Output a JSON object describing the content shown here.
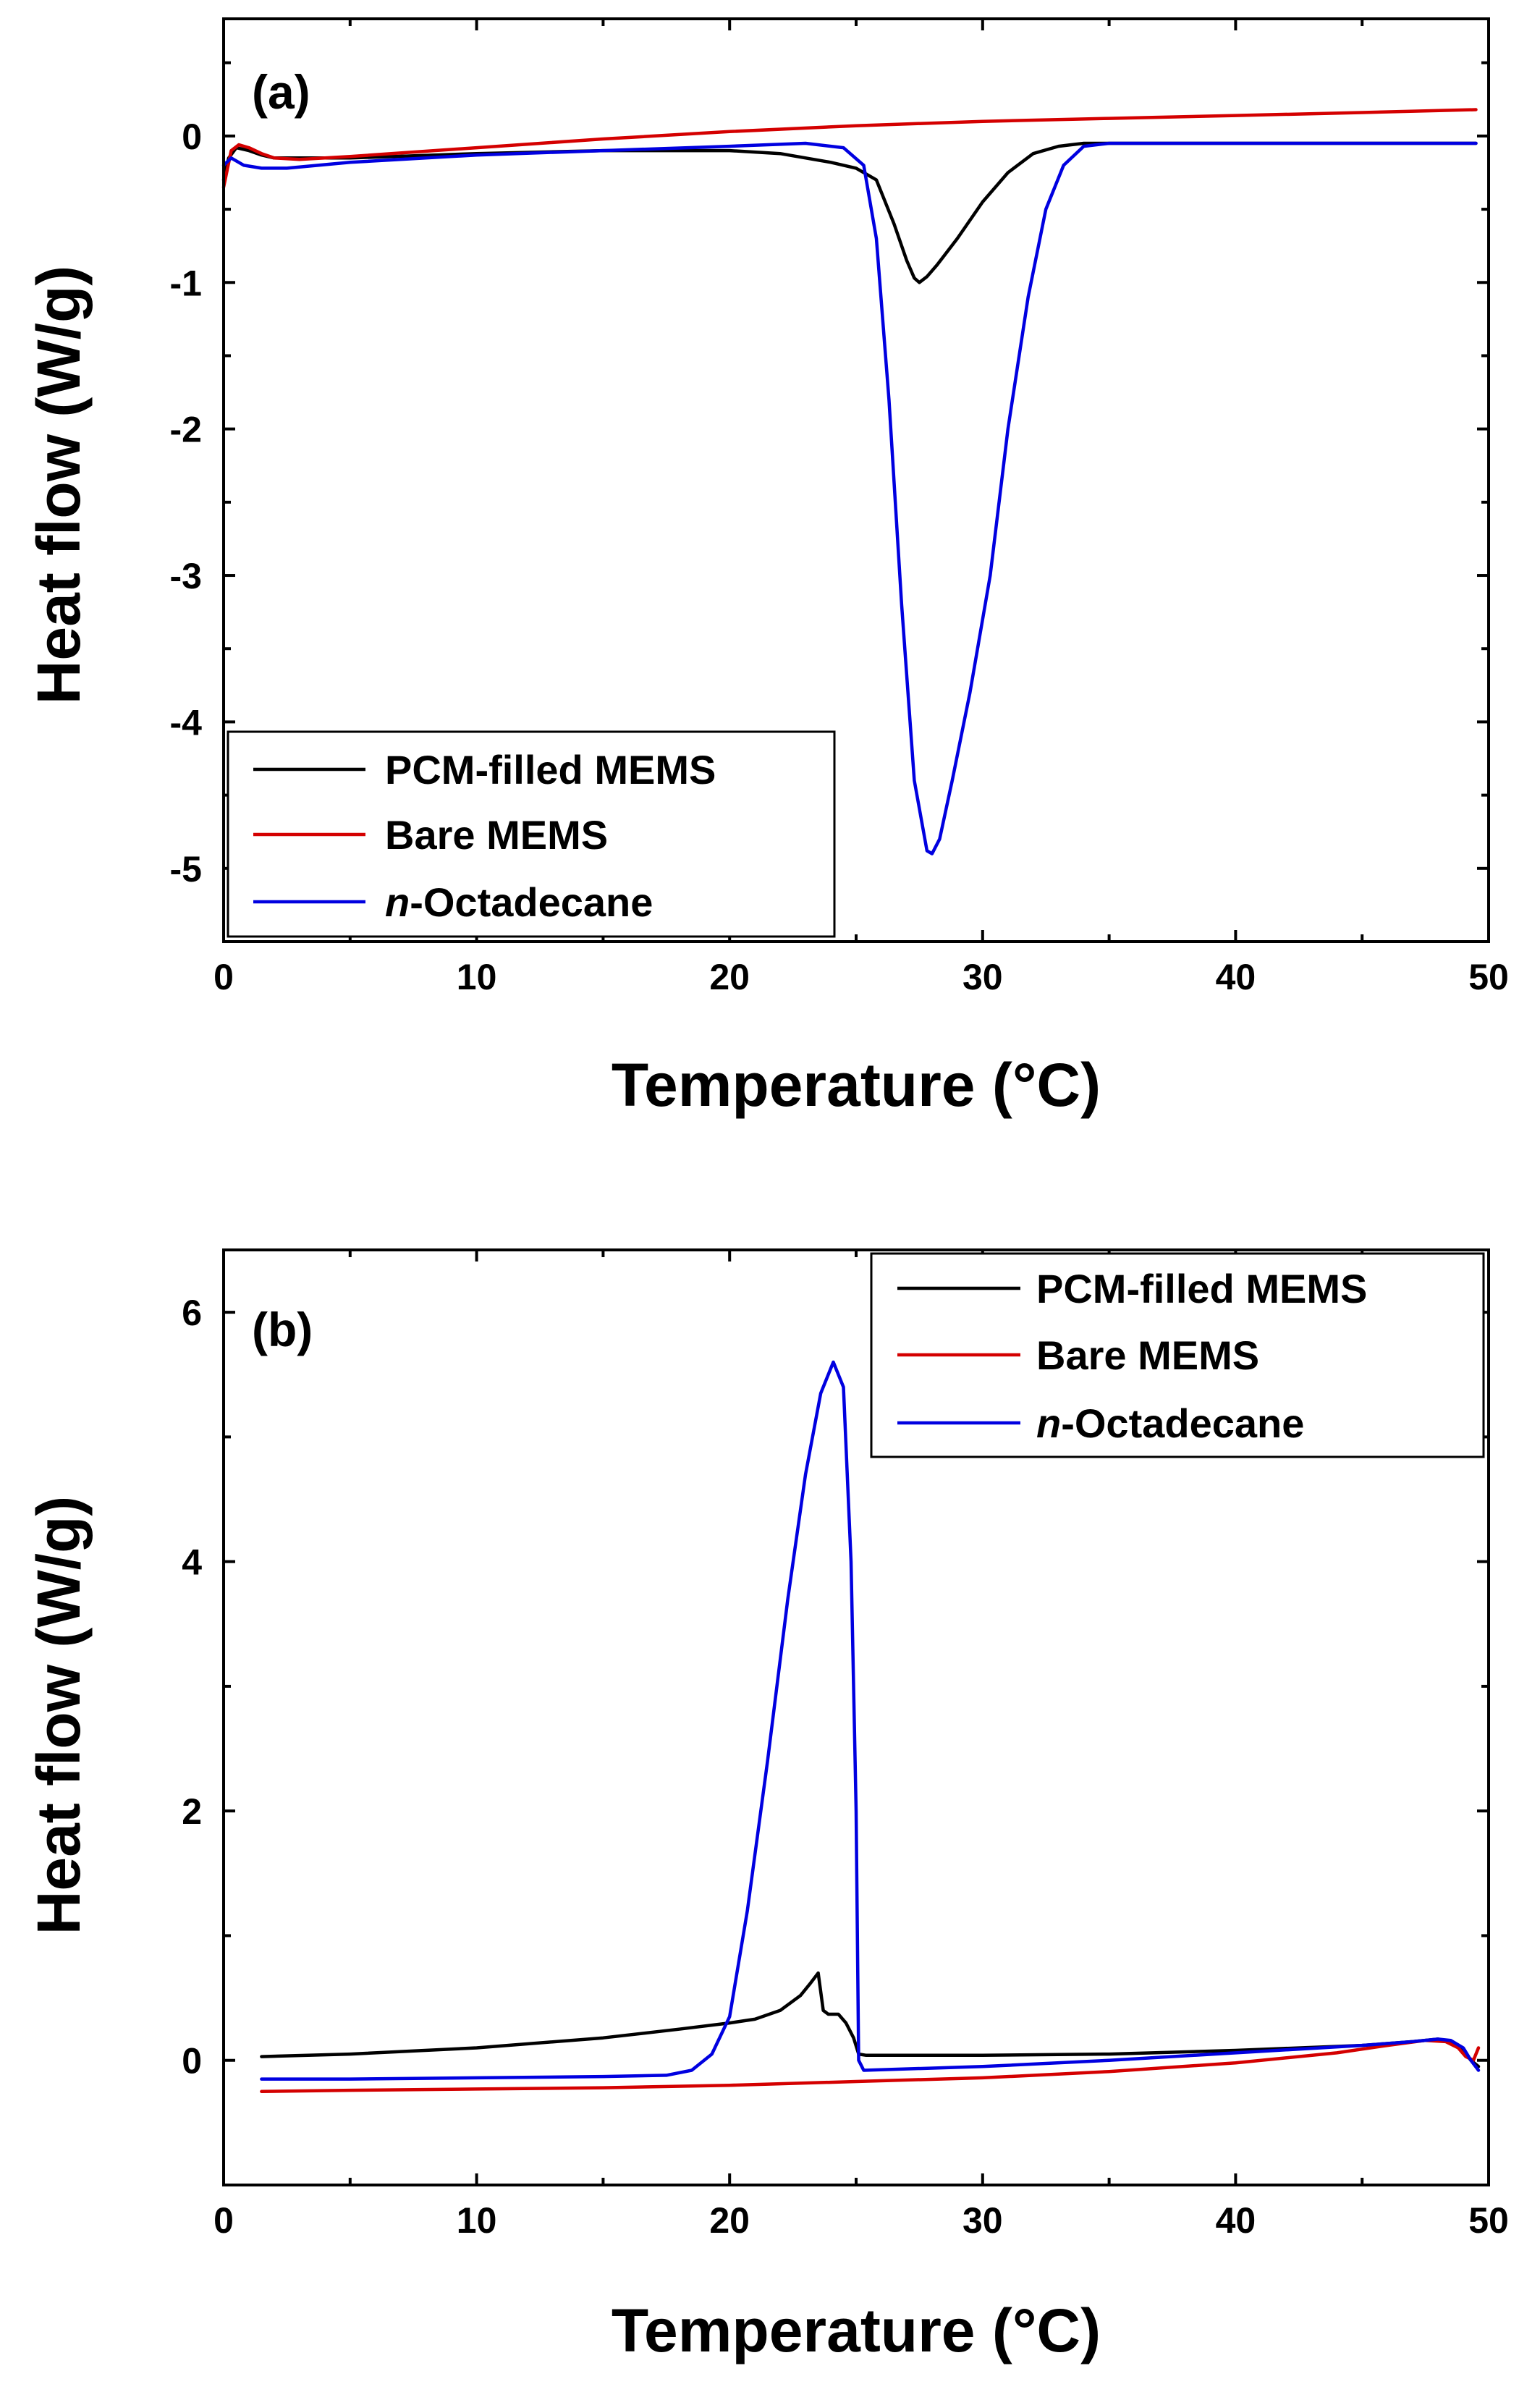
{
  "chart_data": [
    {
      "type": "line",
      "panel_label": "(a)",
      "xlabel": "Temperature (°C)",
      "ylabel": "Heat flow (W/g)",
      "xlim": [
        0,
        50
      ],
      "ylim": [
        -5.5,
        0.8
      ],
      "xticks": [
        0,
        10,
        20,
        30,
        40,
        50
      ],
      "xtick_labels": [
        "0",
        "10",
        "20",
        "30",
        "40",
        "50"
      ],
      "yticks": [
        0,
        -1,
        -2,
        -3,
        -4,
        -5
      ],
      "ytick_labels": [
        "0",
        "-1",
        "-2",
        "-3",
        "-4",
        "-5"
      ],
      "legend_position": "bottom-left",
      "series": [
        {
          "name": "PCM-filled MEMS",
          "color": "#000000",
          "x": [
            0,
            0.2,
            0.5,
            1.0,
            1.5,
            2.0,
            3,
            5,
            10,
            15,
            20,
            22,
            24,
            25,
            25.8,
            26.5,
            27.0,
            27.3,
            27.5,
            27.8,
            28.2,
            29,
            30,
            31,
            32,
            33,
            33.5,
            34,
            40,
            45,
            49.5
          ],
          "y": [
            -0.3,
            -0.15,
            -0.08,
            -0.1,
            -0.13,
            -0.15,
            -0.15,
            -0.15,
            -0.12,
            -0.1,
            -0.1,
            -0.12,
            -0.18,
            -0.22,
            -0.3,
            -0.6,
            -0.85,
            -0.97,
            -1.0,
            -0.96,
            -0.88,
            -0.7,
            -0.45,
            -0.25,
            -0.12,
            -0.07,
            -0.06,
            -0.05,
            -0.05,
            -0.05,
            -0.05
          ]
        },
        {
          "name": "Bare MEMS",
          "color": "#d40000",
          "x": [
            0,
            0.3,
            0.6,
            1.0,
            1.5,
            2.0,
            3,
            5,
            10,
            15,
            20,
            25,
            30,
            35,
            40,
            45,
            49.5
          ],
          "y": [
            -0.35,
            -0.1,
            -0.06,
            -0.08,
            -0.12,
            -0.15,
            -0.16,
            -0.14,
            -0.08,
            -0.02,
            0.03,
            0.07,
            0.1,
            0.12,
            0.14,
            0.16,
            0.18
          ]
        },
        {
          "name": "n-Octadecane",
          "color": "#0000e0",
          "x": [
            0,
            0.3,
            0.8,
            1.5,
            2.5,
            5,
            10,
            15,
            20,
            23,
            24.5,
            25.3,
            25.8,
            26.3,
            26.8,
            27.3,
            27.8,
            28.0,
            28.3,
            28.8,
            29.5,
            30.3,
            31.0,
            31.8,
            32.5,
            33.2,
            34.0,
            35,
            40,
            45,
            49.5
          ],
          "y": [
            -0.2,
            -0.15,
            -0.2,
            -0.22,
            -0.22,
            -0.18,
            -0.13,
            -0.1,
            -0.07,
            -0.05,
            -0.08,
            -0.2,
            -0.7,
            -1.8,
            -3.2,
            -4.4,
            -4.88,
            -4.9,
            -4.8,
            -4.4,
            -3.8,
            -3.0,
            -2.0,
            -1.1,
            -0.5,
            -0.2,
            -0.07,
            -0.05,
            -0.05,
            -0.05,
            -0.05
          ]
        }
      ]
    },
    {
      "type": "line",
      "panel_label": "(b)",
      "xlabel": "Temperature (°C)",
      "ylabel": "Heat flow (W/g)",
      "xlim": [
        0,
        50
      ],
      "ylim": [
        -1.0,
        6.5
      ],
      "xticks": [
        0,
        10,
        20,
        30,
        40,
        50
      ],
      "xtick_labels": [
        "0",
        "10",
        "20",
        "30",
        "40",
        "50"
      ],
      "yticks": [
        0,
        2,
        4,
        6
      ],
      "ytick_labels": [
        "0",
        "2",
        "4",
        "6"
      ],
      "legend_position": "top-right",
      "series": [
        {
          "name": "PCM-filled MEMS",
          "color": "#000000",
          "x": [
            1.5,
            5,
            10,
            15,
            18,
            20,
            21,
            22,
            22.8,
            23.2,
            23.5,
            23.7,
            23.9,
            24.3,
            24.6,
            24.9,
            25.1,
            25.4,
            30,
            35,
            40,
            45,
            47,
            48,
            48.5,
            49,
            49.3,
            49.6
          ],
          "y": [
            0.03,
            0.05,
            0.1,
            0.18,
            0.25,
            0.3,
            0.33,
            0.4,
            0.52,
            0.62,
            0.7,
            0.4,
            0.37,
            0.37,
            0.3,
            0.18,
            0.05,
            0.04,
            0.04,
            0.05,
            0.08,
            0.12,
            0.15,
            0.17,
            0.15,
            0.08,
            0.0,
            -0.05
          ]
        },
        {
          "name": "Bare MEMS",
          "color": "#d40000",
          "x": [
            1.5,
            5,
            10,
            15,
            20,
            25,
            30,
            35,
            40,
            44,
            46,
            47.5,
            48.3,
            48.8,
            49.1,
            49.4,
            49.6
          ],
          "y": [
            -0.25,
            -0.24,
            -0.23,
            -0.22,
            -0.2,
            -0.17,
            -0.14,
            -0.09,
            -0.02,
            0.06,
            0.12,
            0.16,
            0.15,
            0.1,
            0.03,
            0.0,
            0.1
          ]
        },
        {
          "name": "n-Octadecane",
          "color": "#0000e0",
          "x": [
            1.5,
            5,
            10,
            15,
            17.5,
            18.5,
            19.3,
            20.0,
            20.7,
            21.5,
            22.3,
            23.0,
            23.6,
            24.1,
            24.5,
            24.8,
            25.0,
            25.1,
            25.3,
            30,
            35,
            40,
            45,
            47,
            48,
            48.5,
            49,
            49.3,
            49.6
          ],
          "y": [
            -0.15,
            -0.15,
            -0.14,
            -0.13,
            -0.12,
            -0.08,
            0.05,
            0.35,
            1.2,
            2.4,
            3.7,
            4.7,
            5.35,
            5.6,
            5.4,
            4.0,
            2.0,
            0.0,
            -0.08,
            -0.05,
            0.0,
            0.06,
            0.12,
            0.15,
            0.17,
            0.16,
            0.1,
            0.0,
            -0.08
          ]
        }
      ]
    }
  ]
}
